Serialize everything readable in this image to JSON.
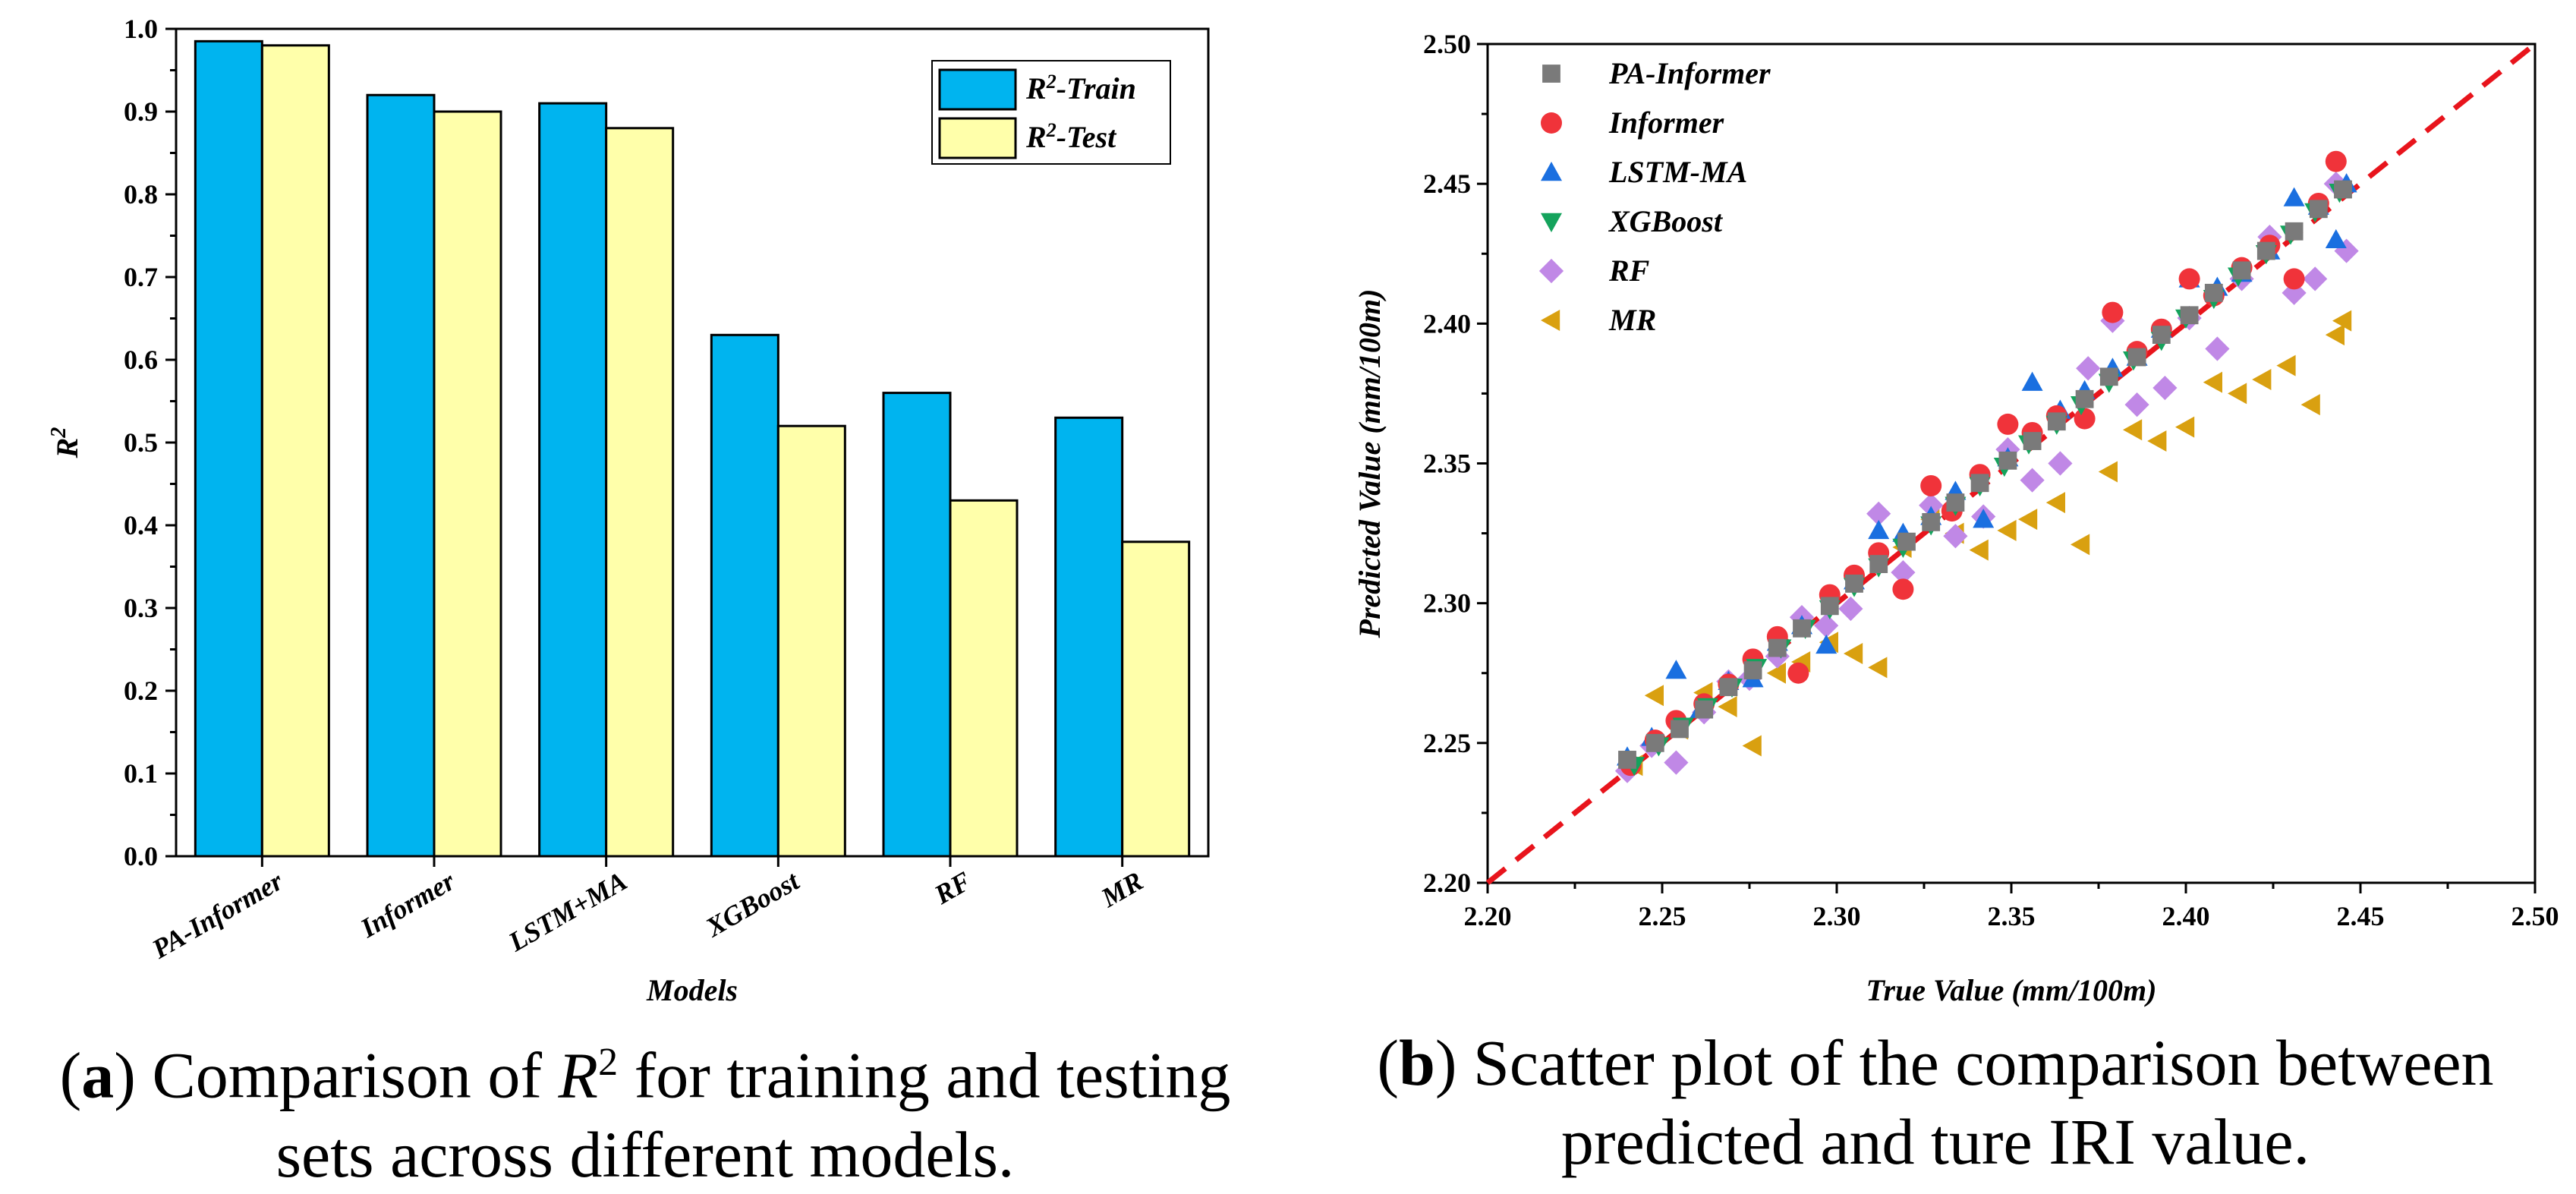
{
  "chart_data": [
    {
      "type": "bar",
      "panel": "a",
      "categories": [
        "PA-Informer",
        "Informer",
        "LSTM+MA",
        "XGBoost",
        "RF",
        "MR"
      ],
      "series": [
        {
          "name": "R2-Train",
          "label_base": "R",
          "label_sup": "2",
          "label_rest": "-Train",
          "color": "#00b4ef",
          "values": [
            0.985,
            0.92,
            0.91,
            0.63,
            0.56,
            0.53
          ]
        },
        {
          "name": "R2-Test",
          "label_base": "R",
          "label_sup": "2",
          "label_rest": "-Test",
          "color": "#ffffaa",
          "values": [
            0.98,
            0.9,
            0.88,
            0.52,
            0.43,
            0.38
          ]
        }
      ],
      "xlabel": "Models",
      "ylabel_base": "R",
      "ylabel_sup": "2",
      "ylim": [
        0,
        1.0
      ],
      "yticks": [
        "0.0",
        "0.1",
        "0.2",
        "0.3",
        "0.4",
        "0.5",
        "0.6",
        "0.7",
        "0.8",
        "0.9",
        "1.0"
      ],
      "legend_position": "top-right"
    },
    {
      "type": "scatter",
      "panel": "b",
      "xlabel": "True Value (mm/100m)",
      "ylabel": "Predicted Value (mm/100m)",
      "xlim": [
        2.2,
        2.5
      ],
      "ylim": [
        2.2,
        2.5
      ],
      "xticks": [
        "2.20",
        "2.25",
        "2.30",
        "2.35",
        "2.40",
        "2.45",
        "2.50"
      ],
      "yticks": [
        "2.20",
        "2.25",
        "2.30",
        "2.35",
        "2.40",
        "2.45",
        "2.50"
      ],
      "reference_line": {
        "style": "dashed",
        "color": "#e8141c",
        "from": [
          2.2,
          2.2
        ],
        "to": [
          2.5,
          2.5
        ]
      },
      "legend_position": "top-left",
      "series": [
        {
          "name": "PA-Informer",
          "marker": "square",
          "color": "#7a7a7a",
          "points": [
            [
              2.24,
              2.244
            ],
            [
              2.248,
              2.25
            ],
            [
              2.255,
              2.255
            ],
            [
              2.262,
              2.262
            ],
            [
              2.269,
              2.27
            ],
            [
              2.276,
              2.276
            ],
            [
              2.283,
              2.284
            ],
            [
              2.29,
              2.291
            ],
            [
              2.298,
              2.299
            ],
            [
              2.305,
              2.307
            ],
            [
              2.312,
              2.314
            ],
            [
              2.32,
              2.322
            ],
            [
              2.327,
              2.329
            ],
            [
              2.334,
              2.336
            ],
            [
              2.341,
              2.343
            ],
            [
              2.349,
              2.351
            ],
            [
              2.356,
              2.358
            ],
            [
              2.363,
              2.365
            ],
            [
              2.371,
              2.373
            ],
            [
              2.378,
              2.381
            ],
            [
              2.386,
              2.388
            ],
            [
              2.393,
              2.396
            ],
            [
              2.401,
              2.403
            ],
            [
              2.408,
              2.411
            ],
            [
              2.416,
              2.419
            ],
            [
              2.423,
              2.426
            ],
            [
              2.431,
              2.433
            ],
            [
              2.438,
              2.441
            ],
            [
              2.445,
              2.448
            ]
          ]
        },
        {
          "name": "Informer",
          "marker": "circle",
          "color": "#f0333a",
          "points": [
            [
              2.241,
              2.242
            ],
            [
              2.248,
              2.251
            ],
            [
              2.254,
              2.258
            ],
            [
              2.262,
              2.264
            ],
            [
              2.269,
              2.271
            ],
            [
              2.276,
              2.28
            ],
            [
              2.283,
              2.288
            ],
            [
              2.289,
              2.275
            ],
            [
              2.298,
              2.303
            ],
            [
              2.305,
              2.31
            ],
            [
              2.312,
              2.318
            ],
            [
              2.319,
              2.305
            ],
            [
              2.327,
              2.342
            ],
            [
              2.333,
              2.333
            ],
            [
              2.341,
              2.346
            ],
            [
              2.349,
              2.364
            ],
            [
              2.356,
              2.361
            ],
            [
              2.363,
              2.367
            ],
            [
              2.371,
              2.366
            ],
            [
              2.379,
              2.404
            ],
            [
              2.386,
              2.39
            ],
            [
              2.393,
              2.398
            ],
            [
              2.401,
              2.416
            ],
            [
              2.408,
              2.41
            ],
            [
              2.416,
              2.42
            ],
            [
              2.424,
              2.428
            ],
            [
              2.431,
              2.416
            ],
            [
              2.438,
              2.443
            ],
            [
              2.443,
              2.458
            ]
          ]
        },
        {
          "name": "LSTM-MA",
          "marker": "triangle-up",
          "color": "#1a6fe0",
          "points": [
            [
              2.24,
              2.245
            ],
            [
              2.247,
              2.252
            ],
            [
              2.254,
              2.276
            ],
            [
              2.261,
              2.262
            ],
            [
              2.269,
              2.272
            ],
            [
              2.276,
              2.273
            ],
            [
              2.283,
              2.286
            ],
            [
              2.29,
              2.292
            ],
            [
              2.297,
              2.285
            ],
            [
              2.305,
              2.308
            ],
            [
              2.312,
              2.326
            ],
            [
              2.319,
              2.325
            ],
            [
              2.327,
              2.331
            ],
            [
              2.334,
              2.34
            ],
            [
              2.342,
              2.33
            ],
            [
              2.349,
              2.352
            ],
            [
              2.356,
              2.379
            ],
            [
              2.364,
              2.369
            ],
            [
              2.371,
              2.376
            ],
            [
              2.379,
              2.384
            ],
            [
              2.386,
              2.388
            ],
            [
              2.393,
              2.398
            ],
            [
              2.401,
              2.416
            ],
            [
              2.409,
              2.413
            ],
            [
              2.416,
              2.418
            ],
            [
              2.424,
              2.426
            ],
            [
              2.431,
              2.445
            ],
            [
              2.438,
              2.442
            ],
            [
              2.443,
              2.43
            ],
            [
              2.446,
              2.45
            ]
          ]
        },
        {
          "name": "XGBoost",
          "marker": "triangle-down",
          "color": "#14a35c",
          "points": [
            [
              2.242,
              2.242
            ],
            [
              2.249,
              2.249
            ],
            [
              2.256,
              2.256
            ],
            [
              2.263,
              2.263
            ],
            [
              2.27,
              2.27
            ],
            [
              2.277,
              2.277
            ],
            [
              2.284,
              2.284
            ],
            [
              2.291,
              2.291
            ],
            [
              2.298,
              2.298
            ],
            [
              2.305,
              2.306
            ],
            [
              2.312,
              2.313
            ],
            [
              2.319,
              2.32
            ],
            [
              2.327,
              2.328
            ],
            [
              2.334,
              2.335
            ],
            [
              2.341,
              2.342
            ],
            [
              2.348,
              2.349
            ],
            [
              2.355,
              2.357
            ],
            [
              2.363,
              2.364
            ],
            [
              2.37,
              2.371
            ],
            [
              2.378,
              2.379
            ],
            [
              2.385,
              2.387
            ],
            [
              2.393,
              2.394
            ],
            [
              2.4,
              2.402
            ],
            [
              2.408,
              2.409
            ],
            [
              2.415,
              2.417
            ],
            [
              2.423,
              2.425
            ],
            [
              2.43,
              2.432
            ],
            [
              2.437,
              2.44
            ],
            [
              2.444,
              2.447
            ]
          ]
        },
        {
          "name": "RF",
          "marker": "diamond",
          "color": "#c088e6",
          "points": [
            [
              2.24,
              2.24
            ],
            [
              2.247,
              2.249
            ],
            [
              2.254,
              2.243
            ],
            [
              2.262,
              2.261
            ],
            [
              2.269,
              2.272
            ],
            [
              2.275,
              2.273
            ],
            [
              2.283,
              2.281
            ],
            [
              2.29,
              2.295
            ],
            [
              2.297,
              2.292
            ],
            [
              2.304,
              2.298
            ],
            [
              2.312,
              2.332
            ],
            [
              2.319,
              2.311
            ],
            [
              2.327,
              2.335
            ],
            [
              2.334,
              2.324
            ],
            [
              2.342,
              2.331
            ],
            [
              2.349,
              2.355
            ],
            [
              2.356,
              2.344
            ],
            [
              2.364,
              2.35
            ],
            [
              2.372,
              2.384
            ],
            [
              2.379,
              2.401
            ],
            [
              2.386,
              2.371
            ],
            [
              2.394,
              2.377
            ],
            [
              2.401,
              2.402
            ],
            [
              2.409,
              2.391
            ],
            [
              2.416,
              2.416
            ],
            [
              2.424,
              2.431
            ],
            [
              2.431,
              2.411
            ],
            [
              2.437,
              2.416
            ],
            [
              2.443,
              2.45
            ],
            [
              2.446,
              2.426
            ]
          ]
        },
        {
          "name": "MR",
          "marker": "triangle-left",
          "color": "#d9a010",
          "points": [
            [
              2.242,
              2.242
            ],
            [
              2.248,
              2.267
            ],
            [
              2.255,
              2.255
            ],
            [
              2.262,
              2.268
            ],
            [
              2.269,
              2.263
            ],
            [
              2.276,
              2.249
            ],
            [
              2.283,
              2.275
            ],
            [
              2.29,
              2.279
            ],
            [
              2.298,
              2.286
            ],
            [
              2.305,
              2.282
            ],
            [
              2.312,
              2.277
            ],
            [
              2.319,
              2.32
            ],
            [
              2.327,
              2.33
            ],
            [
              2.334,
              2.325
            ],
            [
              2.341,
              2.319
            ],
            [
              2.349,
              2.326
            ],
            [
              2.355,
              2.33
            ],
            [
              2.363,
              2.336
            ],
            [
              2.37,
              2.321
            ],
            [
              2.378,
              2.347
            ],
            [
              2.385,
              2.362
            ],
            [
              2.392,
              2.358
            ],
            [
              2.4,
              2.363
            ],
            [
              2.408,
              2.379
            ],
            [
              2.415,
              2.375
            ],
            [
              2.422,
              2.38
            ],
            [
              2.429,
              2.385
            ],
            [
              2.436,
              2.371
            ],
            [
              2.443,
              2.396
            ],
            [
              2.445,
              2.401
            ]
          ]
        }
      ]
    }
  ],
  "captions": {
    "a": {
      "label": "a",
      "text_1": " Comparison of ",
      "text_r": "R",
      "text_sup": "2",
      "text_2": " for training and testing sets across different models."
    },
    "b": {
      "label": "b",
      "text": " Scatter plot of the comparison between predicted and ture IRI value."
    }
  }
}
